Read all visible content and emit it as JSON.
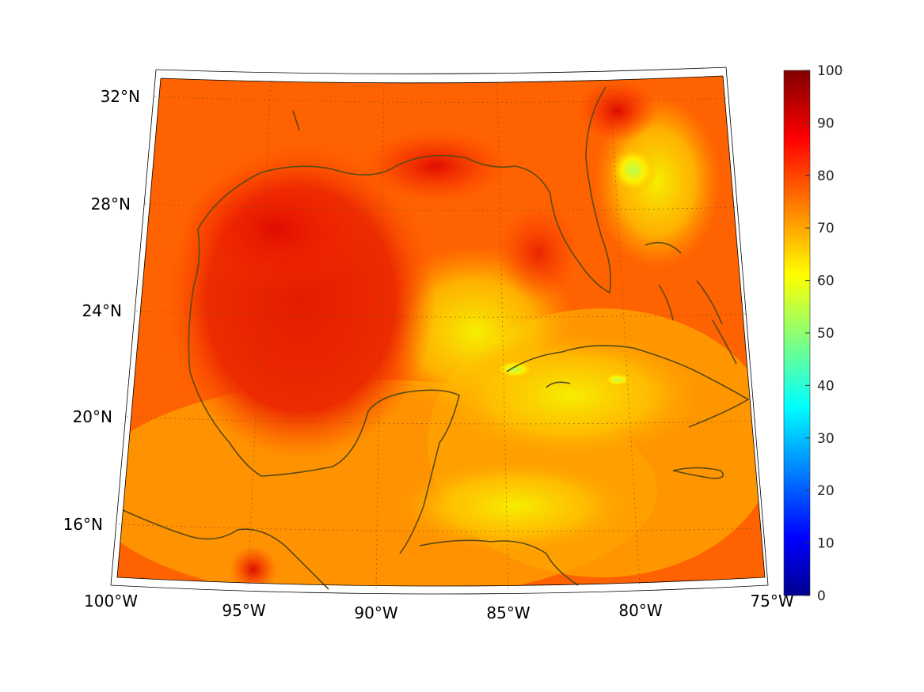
{
  "map": {
    "lat_labels": [
      "32°N",
      "28°N",
      "24°N",
      "20°N",
      "16°N"
    ],
    "lon_labels": [
      "100°W",
      "95°W",
      "90°W",
      "85°W",
      "80°W",
      "75°W"
    ],
    "lat_values": [
      32,
      28,
      24,
      20,
      16
    ],
    "lon_values": [
      -100,
      -95,
      -90,
      -85,
      -80,
      -75
    ]
  },
  "colorbar": {
    "ticks": [
      "100",
      "90",
      "80",
      "70",
      "60",
      "50",
      "40",
      "30",
      "20",
      "10",
      "0"
    ],
    "range": [
      0,
      100
    ],
    "colormap": "jet"
  },
  "colors": {
    "coastline": "#5a4a14",
    "gulf_high": "#e81a00",
    "background_field": "#ff6a00"
  }
}
